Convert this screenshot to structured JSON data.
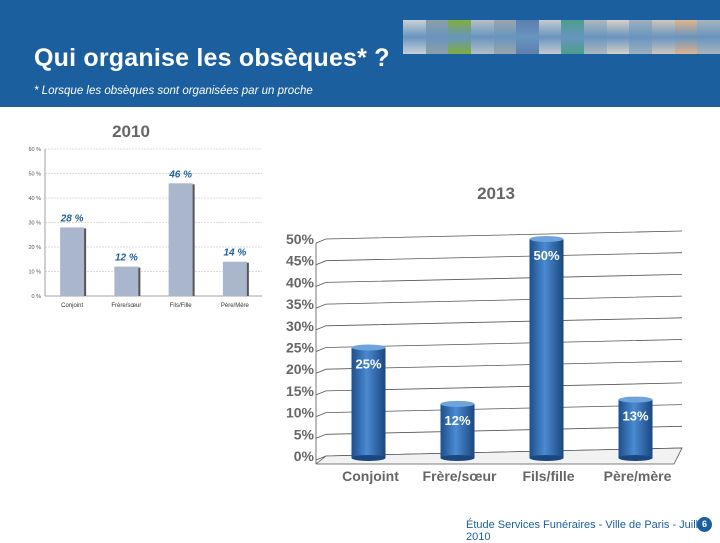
{
  "header": {
    "title": "Qui organise les obsèques* ?",
    "subtitle": "* Lorsque les obsèques sont organisées par un proche",
    "background_color": "#1c5f9e",
    "photo_strip_colors": [
      "#c9d1d8",
      "#8f9ea8",
      "#7fae3c",
      "#b4bfc6",
      "#9aa5ad",
      "#5d7fae",
      "#c4cbd0",
      "#4b9e8e",
      "#aeb8bf",
      "#d6d0c8",
      "#9eb0be",
      "#cfc6bd",
      "#e0b48a",
      "#a8b4bd"
    ]
  },
  "chart_data": [
    {
      "type": "bar",
      "title": "2010",
      "categories": [
        "Conjoint",
        "Frère/sœur",
        "Fils/Fille",
        "Père/Mère"
      ],
      "values": [
        28,
        12,
        46,
        14
      ],
      "data_labels": [
        "28 %",
        "12 %",
        "46 %",
        "14 %"
      ],
      "ytick_labels": [
        "0 %",
        "10 %",
        "20 %",
        "30 %",
        "40 %",
        "50 %",
        "60 %"
      ],
      "ylim": [
        0,
        60
      ],
      "grid": true,
      "bar_color": "#a9b6cc",
      "label_color": "#1c5f9e"
    },
    {
      "type": "bar",
      "title": "2013",
      "style": "3d-cylinder",
      "categories": [
        "Conjoint",
        "Frère/sœur",
        "Fils/fille",
        "Père/mère"
      ],
      "values": [
        25,
        12,
        50,
        13
      ],
      "data_labels": [
        "25%",
        "12%",
        "50%",
        "13%"
      ],
      "ytick_labels": [
        "0%",
        "5%",
        "10%",
        "15%",
        "20%",
        "25%",
        "30%",
        "35%",
        "40%",
        "45%",
        "50%"
      ],
      "ylim": [
        0,
        50
      ],
      "grid": true,
      "bar_color": "#2e6db4",
      "label_color": "#ffffff"
    }
  ],
  "footer": {
    "text": "Étude Services Funéraires - Ville de Paris - Juillet 2010",
    "page_number": "6"
  }
}
